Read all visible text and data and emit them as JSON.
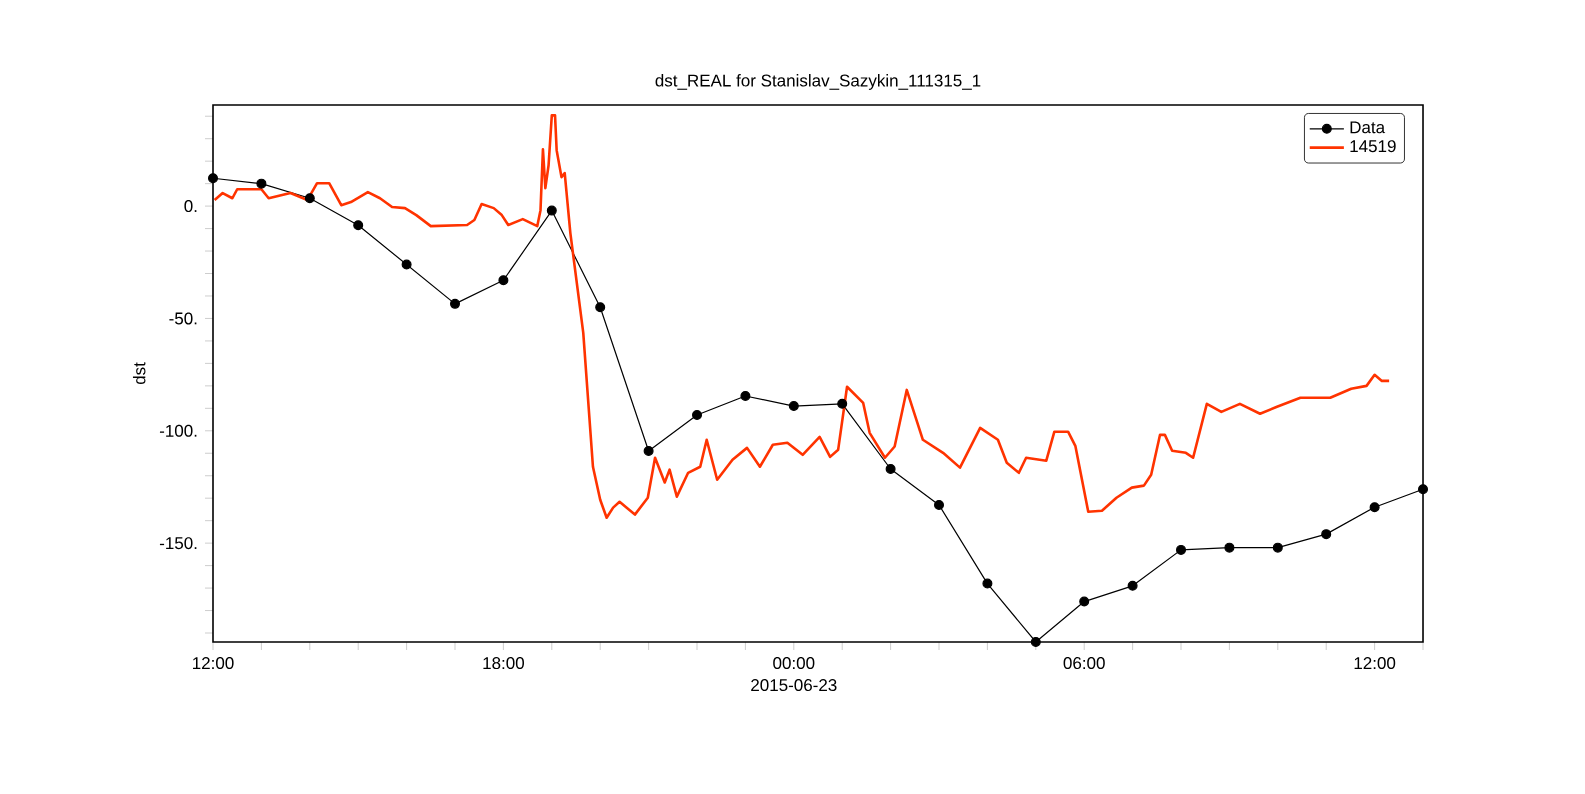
{
  "chart_data": {
    "type": "line",
    "title": "dst_REAL for Stanislav_Sazykin_111315_1",
    "ylabel": "dst",
    "xlabel": "2015-06-23",
    "xlim": [
      "2015-06-22T12:00",
      "2015-06-23T13:00"
    ],
    "ylim": [
      -194,
      45
    ],
    "xticks": [
      {
        "value": "2015-06-22T12:00",
        "label": "12:00"
      },
      {
        "value": "2015-06-22T13:00",
        "label": null
      },
      {
        "value": "2015-06-22T14:00",
        "label": null
      },
      {
        "value": "2015-06-22T15:00",
        "label": null
      },
      {
        "value": "2015-06-22T16:00",
        "label": null
      },
      {
        "value": "2015-06-22T17:00",
        "label": null
      },
      {
        "value": "2015-06-22T18:00",
        "label": "18:00"
      },
      {
        "value": "2015-06-22T19:00",
        "label": null
      },
      {
        "value": "2015-06-22T20:00",
        "label": null
      },
      {
        "value": "2015-06-22T21:00",
        "label": null
      },
      {
        "value": "2015-06-22T22:00",
        "label": null
      },
      {
        "value": "2015-06-22T23:00",
        "label": null
      },
      {
        "value": "2015-06-23T00:00",
        "label": "00:00"
      },
      {
        "value": "2015-06-23T01:00",
        "label": null
      },
      {
        "value": "2015-06-23T02:00",
        "label": null
      },
      {
        "value": "2015-06-23T03:00",
        "label": null
      },
      {
        "value": "2015-06-23T04:00",
        "label": null
      },
      {
        "value": "2015-06-23T05:00",
        "label": null
      },
      {
        "value": "2015-06-23T06:00",
        "label": "06:00"
      },
      {
        "value": "2015-06-23T07:00",
        "label": null
      },
      {
        "value": "2015-06-23T08:00",
        "label": null
      },
      {
        "value": "2015-06-23T09:00",
        "label": null
      },
      {
        "value": "2015-06-23T10:00",
        "label": null
      },
      {
        "value": "2015-06-23T11:00",
        "label": null
      },
      {
        "value": "2015-06-23T12:00",
        "label": "12:00"
      },
      {
        "value": "2015-06-23T13:00",
        "label": null
      }
    ],
    "yticks": [
      {
        "value": -190,
        "label": null
      },
      {
        "value": -180,
        "label": null
      },
      {
        "value": -170,
        "label": null
      },
      {
        "value": -160,
        "label": null
      },
      {
        "value": -150,
        "label": "-150."
      },
      {
        "value": -140,
        "label": null
      },
      {
        "value": -130,
        "label": null
      },
      {
        "value": -120,
        "label": null
      },
      {
        "value": -110,
        "label": null
      },
      {
        "value": -100,
        "label": "-100."
      },
      {
        "value": -90,
        "label": null
      },
      {
        "value": -80,
        "label": null
      },
      {
        "value": -70,
        "label": null
      },
      {
        "value": -60,
        "label": null
      },
      {
        "value": -50,
        "label": "-50."
      },
      {
        "value": -40,
        "label": null
      },
      {
        "value": -30,
        "label": null
      },
      {
        "value": -20,
        "label": null
      },
      {
        "value": -10,
        "label": null
      },
      {
        "value": 0,
        "label": "0."
      },
      {
        "value": 10,
        "label": null
      },
      {
        "value": 20,
        "label": null
      },
      {
        "value": 30,
        "label": null
      },
      {
        "value": 40,
        "label": null
      }
    ],
    "legend": "top right",
    "series": [
      {
        "name": "Data",
        "color": "#000000",
        "marker": "circle",
        "x": [
          "2015-06-22T12:00",
          "2015-06-22T13:00",
          "2015-06-22T14:00",
          "2015-06-22T15:00",
          "2015-06-22T16:00",
          "2015-06-22T17:00",
          "2015-06-22T18:00",
          "2015-06-22T19:00",
          "2015-06-22T20:00",
          "2015-06-22T21:00",
          "2015-06-22T22:00",
          "2015-06-22T23:00",
          "2015-06-23T00:00",
          "2015-06-23T01:00",
          "2015-06-23T02:00",
          "2015-06-23T03:00",
          "2015-06-23T04:00",
          "2015-06-23T05:00",
          "2015-06-23T06:00",
          "2015-06-23T07:00",
          "2015-06-23T08:00",
          "2015-06-23T09:00",
          "2015-06-23T10:00",
          "2015-06-23T11:00",
          "2015-06-23T12:00",
          "2015-06-23T13:00"
        ],
        "values": [
          12.4,
          10,
          3.5,
          -8.5,
          -26,
          -43.5,
          -33,
          -2,
          -45,
          -109,
          -93,
          -84.5,
          -89,
          -88,
          -117,
          -133,
          -168,
          -194,
          -176,
          -169,
          -153,
          -152,
          -152,
          -146,
          -134,
          -126
        ]
      },
      {
        "name": "14519",
        "color": "#ff3300",
        "marker": "none",
        "x": [
          "2015-06-22T12:02",
          "2015-06-22T12:12",
          "2015-06-22T12:24",
          "2015-06-22T12:30",
          "2015-06-22T13:00",
          "2015-06-22T13:09",
          "2015-06-22T13:36",
          "2015-06-22T13:57",
          "2015-06-22T14:09",
          "2015-06-22T14:24",
          "2015-06-22T14:39",
          "2015-06-22T14:51",
          "2015-06-22T15:12",
          "2015-06-22T15:27",
          "2015-06-22T15:42",
          "2015-06-22T15:58",
          "2015-06-22T16:12",
          "2015-06-22T16:30",
          "2015-06-22T17:15",
          "2015-06-22T17:24",
          "2015-06-22T17:33",
          "2015-06-22T17:48",
          "2015-06-22T17:58",
          "2015-06-22T18:06",
          "2015-06-22T18:24",
          "2015-06-22T18:42",
          "2015-06-22T18:46",
          "2015-06-22T18:49",
          "2015-06-22T18:52",
          "2015-06-22T18:56",
          "2015-06-22T19:00",
          "2015-06-22T19:04",
          "2015-06-22T19:06",
          "2015-06-22T19:12",
          "2015-06-22T19:16",
          "2015-06-22T19:23",
          "2015-06-22T19:39",
          "2015-06-22T19:51",
          "2015-06-22T20:00",
          "2015-06-22T20:08",
          "2015-06-22T20:16",
          "2015-06-22T20:24",
          "2015-06-22T20:43",
          "2015-06-22T20:59",
          "2015-06-22T21:08",
          "2015-06-22T21:20",
          "2015-06-22T21:26",
          "2015-06-22T21:35",
          "2015-06-22T21:49",
          "2015-06-22T22:04",
          "2015-06-22T22:12",
          "2015-06-22T22:25",
          "2015-06-22T22:44",
          "2015-06-22T23:02",
          "2015-06-22T23:18",
          "2015-06-22T23:34",
          "2015-06-22T23:52",
          "2015-06-23T00:11",
          "2015-06-23T00:32",
          "2015-06-23T00:45",
          "2015-06-23T00:55",
          "2015-06-23T01:06",
          "2015-06-23T01:26",
          "2015-06-23T01:34",
          "2015-06-23T01:53",
          "2015-06-23T02:05",
          "2015-06-23T02:20",
          "2015-06-23T02:40",
          "2015-06-23T03:05",
          "2015-06-23T03:26",
          "2015-06-23T03:51",
          "2015-06-23T04:13",
          "2015-06-23T04:24",
          "2015-06-23T04:39",
          "2015-06-23T04:48",
          "2015-06-23T05:13",
          "2015-06-23T05:23",
          "2015-06-23T05:40",
          "2015-06-23T05:49",
          "2015-06-23T06:05",
          "2015-06-23T06:22",
          "2015-06-23T06:40",
          "2015-06-23T06:59",
          "2015-06-23T07:14",
          "2015-06-23T07:23",
          "2015-06-23T07:34",
          "2015-06-23T07:40",
          "2015-06-23T07:49",
          "2015-06-23T08:06",
          "2015-06-23T08:15",
          "2015-06-23T08:32",
          "2015-06-23T08:50",
          "2015-06-23T09:13",
          "2015-06-23T09:38",
          "2015-06-23T09:59",
          "2015-06-23T10:28",
          "2015-06-23T11:05",
          "2015-06-23T11:31",
          "2015-06-23T11:50",
          "2015-06-23T12:00",
          "2015-06-23T12:09",
          "2015-06-23T12:18"
        ],
        "values": [
          2.7,
          5.8,
          3.5,
          7.5,
          7.5,
          3.5,
          5.8,
          2.7,
          10.2,
          10.2,
          0.4,
          1.8,
          6.2,
          3.5,
          -0.4,
          -0.9,
          -4,
          -8.9,
          -8.4,
          -6.2,
          0.9,
          -0.9,
          -4,
          -8.4,
          -5.8,
          -8.9,
          -1.8,
          25.3,
          8,
          18.2,
          40.4,
          40.4,
          24.9,
          12.9,
          14.7,
          -12,
          -56.4,
          -116,
          -130.7,
          -138.7,
          -134.2,
          -131.6,
          -137.3,
          -129.8,
          -112,
          -123,
          -117.3,
          -129.3,
          -118.7,
          -116,
          -104,
          -121.8,
          -112.9,
          -107.6,
          -116,
          -106.2,
          -105.3,
          -110.7,
          -102.7,
          -111.6,
          -108.4,
          -80.4,
          -87.6,
          -100.9,
          -112,
          -107,
          -81.8,
          -104,
          -109.8,
          -116.4,
          -98.7,
          -104,
          -114.2,
          -118.7,
          -112,
          -113.3,
          -100.4,
          -100.4,
          -106.7,
          -136,
          -135.6,
          -129.8,
          -125.3,
          -124.4,
          -119.6,
          -101.8,
          -101.8,
          -108.9,
          -109.8,
          -112,
          -88,
          -91.6,
          -88,
          -92.4,
          -89.3,
          -85.3,
          -85.3,
          -81.3,
          -80,
          -75.1,
          -77.8,
          -77.8
        ]
      }
    ]
  }
}
